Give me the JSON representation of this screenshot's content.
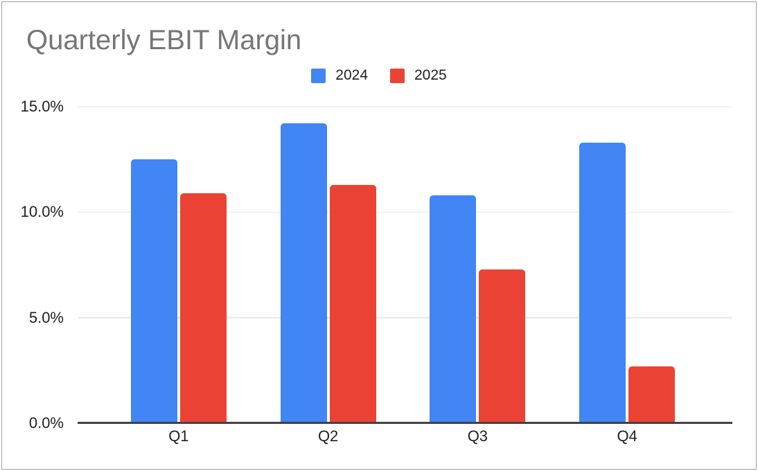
{
  "title": "Quarterly EBIT Margin",
  "chart_data": {
    "type": "bar",
    "title": "Quarterly EBIT Margin",
    "categories": [
      "Q1",
      "Q2",
      "Q3",
      "Q4"
    ],
    "series": [
      {
        "name": "2024",
        "color": "#4285F4",
        "values": [
          12.5,
          14.2,
          10.8,
          13.3
        ]
      },
      {
        "name": "2025",
        "color": "#EA4335",
        "values": [
          10.9,
          11.3,
          7.3,
          2.7
        ]
      }
    ],
    "xlabel": "",
    "ylabel": "",
    "unit": "percent",
    "ylim": [
      0,
      15
    ],
    "yticks": [
      "0.0%",
      "5.0%",
      "10.0%",
      "15.0%"
    ],
    "grid": true,
    "legend_position": "top-center"
  },
  "colors": {
    "series_2024": "#4285F4",
    "series_2025": "#EA4335",
    "title_text": "#757575",
    "axis_text": "#1f1f1f",
    "gridline": "#e6e6e6",
    "baseline": "#424242",
    "frame_border": "#9c9c9c",
    "background": "#ffffff"
  }
}
